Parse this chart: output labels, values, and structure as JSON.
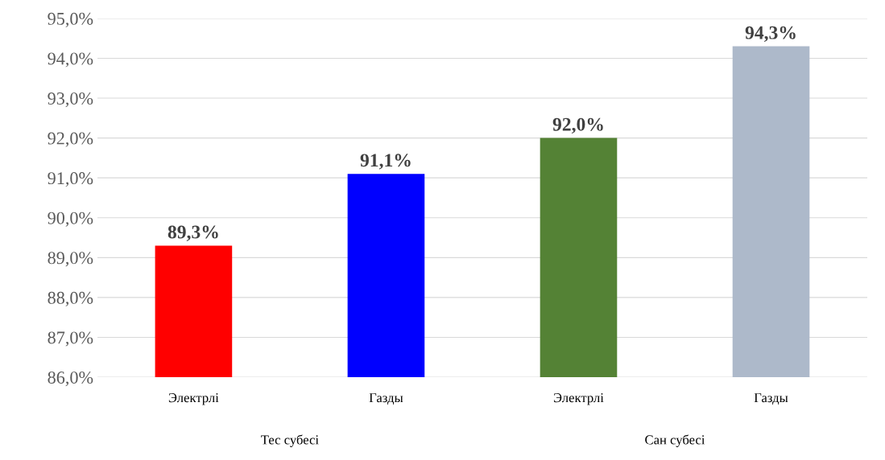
{
  "chart_data": {
    "type": "bar",
    "categories": [
      "Электрлі",
      "Газды",
      "Электрлі",
      "Газды"
    ],
    "values": [
      89.3,
      91.1,
      92.0,
      94.3
    ],
    "colors": [
      "#ff0000",
      "#0000ff",
      "#548235",
      "#adb9ca"
    ],
    "value_labels": [
      "89,3%",
      "91,1%",
      "92,0%",
      "94,3%"
    ],
    "ylim": [
      86,
      95
    ],
    "yticks": [
      {
        "value": 86,
        "label": "86,0%"
      },
      {
        "value": 87,
        "label": "87,0%"
      },
      {
        "value": 88,
        "label": "88,0%"
      },
      {
        "value": 89,
        "label": "89,0%"
      },
      {
        "value": 90,
        "label": "90,0%"
      },
      {
        "value": 91,
        "label": "91,0%"
      },
      {
        "value": 92,
        "label": "92,0%"
      },
      {
        "value": 93,
        "label": "93,0%"
      },
      {
        "value": 94,
        "label": "94,0%"
      },
      {
        "value": 95,
        "label": "95,0%"
      }
    ],
    "annotations": [
      "Тес субесі",
      "Сан субесі"
    ],
    "grid": "y"
  }
}
